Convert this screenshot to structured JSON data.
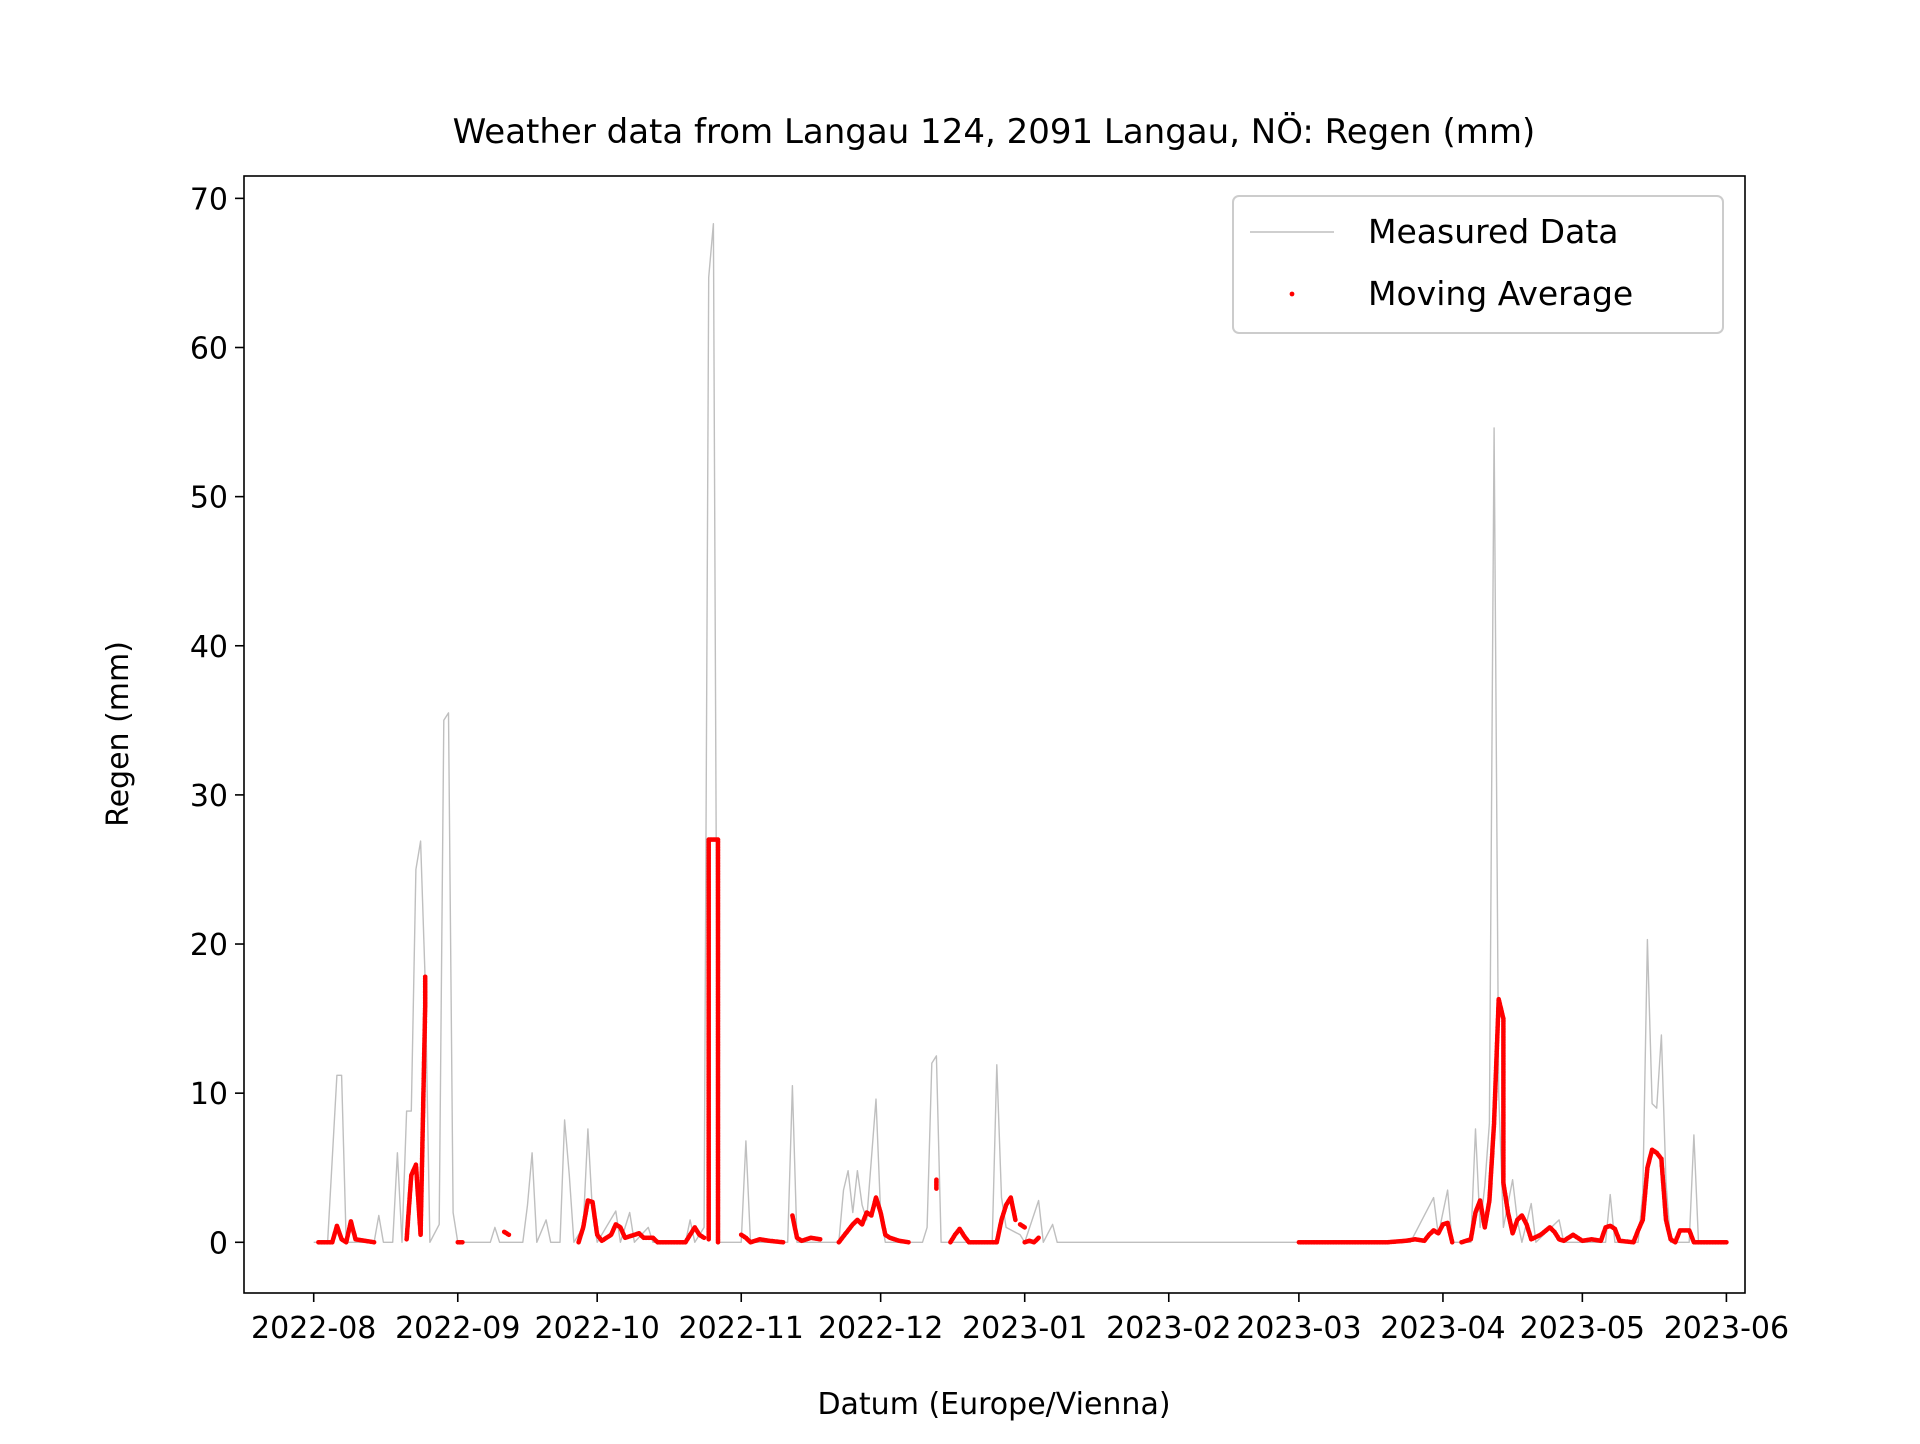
{
  "chart_data": {
    "type": "line",
    "title": "Weather data from Langau 124, 2091 Langau, NÖ: Regen (mm)",
    "xlabel": "Datum (Europe/Vienna)",
    "ylabel": "Regen (mm)",
    "x_range": [
      "2022-07-17",
      "2023-06-05"
    ],
    "ylim": [
      -3.4,
      71.5
    ],
    "x_ticks": [
      "2022-08",
      "2022-09",
      "2022-10",
      "2022-11",
      "2022-12",
      "2023-01",
      "2023-02",
      "2023-03",
      "2023-04",
      "2023-05",
      "2023-06"
    ],
    "y_ticks": [
      0,
      10,
      20,
      30,
      40,
      50,
      60,
      70
    ],
    "grid": false,
    "legend": {
      "position": "top-right"
    },
    "colors": {
      "measured": "#bfbfbf",
      "moving_average": "#ff0000"
    },
    "series": [
      {
        "name": "Measured Data",
        "style": "line",
        "points": [
          [
            "2022-08-01",
            0
          ],
          [
            "2022-08-04",
            0
          ],
          [
            "2022-08-06",
            11.2
          ],
          [
            "2022-08-07",
            11.2
          ],
          [
            "2022-08-08",
            0
          ],
          [
            "2022-08-14",
            0
          ],
          [
            "2022-08-15",
            1.8
          ],
          [
            "2022-08-16",
            0
          ],
          [
            "2022-08-18",
            0
          ],
          [
            "2022-08-19",
            6.0
          ],
          [
            "2022-08-20",
            0
          ],
          [
            "2022-08-21",
            8.8
          ],
          [
            "2022-08-22",
            8.8
          ],
          [
            "2022-08-23",
            25.0
          ],
          [
            "2022-08-24",
            26.9
          ],
          [
            "2022-08-25",
            17.5
          ],
          [
            "2022-08-26",
            0
          ],
          [
            "2022-08-28",
            1.2
          ],
          [
            "2022-08-29",
            35.0
          ],
          [
            "2022-08-30",
            35.5
          ],
          [
            "2022-08-31",
            2.0
          ],
          [
            "2022-09-01",
            0
          ],
          [
            "2022-09-08",
            0
          ],
          [
            "2022-09-09",
            1.0
          ],
          [
            "2022-09-10",
            0
          ],
          [
            "2022-09-15",
            0
          ],
          [
            "2022-09-16",
            2.5
          ],
          [
            "2022-09-17",
            6.0
          ],
          [
            "2022-09-18",
            0
          ],
          [
            "2022-09-20",
            1.5
          ],
          [
            "2022-09-21",
            0
          ],
          [
            "2022-09-23",
            0
          ],
          [
            "2022-09-24",
            8.2
          ],
          [
            "2022-09-25",
            4.5
          ],
          [
            "2022-09-26",
            0
          ],
          [
            "2022-09-28",
            1.0
          ],
          [
            "2022-09-29",
            7.6
          ],
          [
            "2022-09-30",
            2.0
          ],
          [
            "2022-10-01",
            0
          ],
          [
            "2022-10-05",
            2.1
          ],
          [
            "2022-10-06",
            0
          ],
          [
            "2022-10-08",
            2.0
          ],
          [
            "2022-10-09",
            0
          ],
          [
            "2022-10-12",
            1.0
          ],
          [
            "2022-10-13",
            0
          ],
          [
            "2022-10-20",
            0
          ],
          [
            "2022-10-21",
            1.5
          ],
          [
            "2022-10-22",
            0
          ],
          [
            "2022-10-24",
            1.0
          ],
          [
            "2022-10-25",
            64.7
          ],
          [
            "2022-10-26",
            68.3
          ],
          [
            "2022-10-27",
            0
          ],
          [
            "2022-11-01",
            0
          ],
          [
            "2022-11-02",
            6.8
          ],
          [
            "2022-11-03",
            0
          ],
          [
            "2022-11-11",
            0
          ],
          [
            "2022-11-12",
            10.5
          ],
          [
            "2022-11-13",
            0
          ],
          [
            "2022-11-22",
            0
          ],
          [
            "2022-11-23",
            3.5
          ],
          [
            "2022-11-24",
            4.8
          ],
          [
            "2022-11-25",
            2.0
          ],
          [
            "2022-11-26",
            4.8
          ],
          [
            "2022-11-27",
            2.5
          ],
          [
            "2022-11-28",
            1.5
          ],
          [
            "2022-11-30",
            9.6
          ],
          [
            "2022-12-01",
            2.0
          ],
          [
            "2022-12-02",
            0
          ],
          [
            "2022-12-10",
            0
          ],
          [
            "2022-12-11",
            1.0
          ],
          [
            "2022-12-12",
            12.0
          ],
          [
            "2022-12-13",
            12.5
          ],
          [
            "2022-12-14",
            0
          ],
          [
            "2022-12-25",
            0
          ],
          [
            "2022-12-26",
            11.9
          ],
          [
            "2022-12-27",
            3.0
          ],
          [
            "2022-12-28",
            1.0
          ],
          [
            "2022-12-31",
            0.5
          ],
          [
            "2023-01-01",
            0
          ],
          [
            "2023-01-04",
            2.8
          ],
          [
            "2023-01-05",
            0
          ],
          [
            "2023-01-07",
            1.2
          ],
          [
            "2023-01-08",
            0
          ],
          [
            "2023-03-01",
            0
          ],
          [
            "2023-03-25",
            0
          ],
          [
            "2023-03-30",
            3.0
          ],
          [
            "2023-03-31",
            0.5
          ],
          [
            "2023-04-02",
            3.5
          ],
          [
            "2023-04-03",
            0
          ],
          [
            "2023-04-07",
            0
          ],
          [
            "2023-04-08",
            7.6
          ],
          [
            "2023-04-09",
            1.0
          ],
          [
            "2023-04-10",
            3.8
          ],
          [
            "2023-04-11",
            8.0
          ],
          [
            "2023-04-12",
            54.6
          ],
          [
            "2023-04-13",
            10.0
          ],
          [
            "2023-04-14",
            1.0
          ],
          [
            "2023-04-16",
            4.2
          ],
          [
            "2023-04-17",
            1.5
          ],
          [
            "2023-04-18",
            0
          ],
          [
            "2023-04-20",
            2.6
          ],
          [
            "2023-04-21",
            0
          ],
          [
            "2023-04-26",
            1.5
          ],
          [
            "2023-04-27",
            0
          ],
          [
            "2023-05-06",
            0
          ],
          [
            "2023-05-07",
            3.2
          ],
          [
            "2023-05-08",
            0
          ],
          [
            "2023-05-13",
            0
          ],
          [
            "2023-05-14",
            3.3
          ],
          [
            "2023-05-15",
            20.3
          ],
          [
            "2023-05-16",
            9.3
          ],
          [
            "2023-05-17",
            9.0
          ],
          [
            "2023-05-18",
            13.9
          ],
          [
            "2023-05-19",
            4.0
          ],
          [
            "2023-05-20",
            0
          ],
          [
            "2023-05-24",
            0
          ],
          [
            "2023-05-25",
            7.2
          ],
          [
            "2023-05-26",
            0
          ],
          [
            "2023-06-01",
            0
          ]
        ]
      },
      {
        "name": "Moving Average",
        "style": "dots",
        "segments": [
          [
            [
              "2022-08-02",
              0
            ],
            [
              "2022-08-05",
              0
            ],
            [
              "2022-08-06",
              1.1
            ],
            [
              "2022-08-07",
              0.2
            ],
            [
              "2022-08-08",
              0
            ],
            [
              "2022-08-09",
              1.4
            ],
            [
              "2022-08-10",
              0.2
            ],
            [
              "2022-08-14",
              0
            ]
          ],
          [
            [
              "2022-08-21",
              0.2
            ],
            [
              "2022-08-22",
              4.5
            ],
            [
              "2022-08-23",
              5.2
            ],
            [
              "2022-08-24",
              0.5
            ],
            [
              "2022-08-25",
              16.0
            ],
            [
              "2022-08-25",
              17.8
            ]
          ],
          [
            [
              "2022-09-01",
              0
            ],
            [
              "2022-09-02",
              0
            ]
          ],
          [
            [
              "2022-09-11",
              0.7
            ],
            [
              "2022-09-12",
              0.5
            ]
          ],
          [
            [
              "2022-09-27",
              0
            ],
            [
              "2022-09-28",
              1.0
            ],
            [
              "2022-09-29",
              2.8
            ],
            [
              "2022-09-30",
              2.7
            ],
            [
              "2022-10-01",
              0.5
            ],
            [
              "2022-10-02",
              0.1
            ],
            [
              "2022-10-04",
              0.5
            ],
            [
              "2022-10-05",
              1.2
            ],
            [
              "2022-10-06",
              1.0
            ],
            [
              "2022-10-07",
              0.3
            ],
            [
              "2022-10-09",
              0.5
            ],
            [
              "2022-10-10",
              0.6
            ],
            [
              "2022-10-11",
              0.3
            ],
            [
              "2022-10-13",
              0.3
            ],
            [
              "2022-10-14",
              0
            ],
            [
              "2022-10-20",
              0
            ],
            [
              "2022-10-21",
              0.5
            ],
            [
              "2022-10-22",
              1.0
            ],
            [
              "2022-10-23",
              0.5
            ],
            [
              "2022-10-24",
              0.3
            ]
          ],
          [
            [
              "2022-10-25",
              0.2
            ],
            [
              "2022-10-25",
              27.0
            ],
            [
              "2022-10-27",
              27.0
            ],
            [
              "2022-10-27",
              0
            ]
          ],
          [
            [
              "2022-11-01",
              0.5
            ],
            [
              "2022-11-02",
              0.3
            ],
            [
              "2022-11-03",
              0
            ],
            [
              "2022-11-05",
              0.2
            ],
            [
              "2022-11-07",
              0.1
            ],
            [
              "2022-11-10",
              0
            ]
          ],
          [
            [
              "2022-11-12",
              1.8
            ],
            [
              "2022-11-13",
              0.3
            ],
            [
              "2022-11-14",
              0.1
            ],
            [
              "2022-11-16",
              0.3
            ],
            [
              "2022-11-18",
              0.2
            ]
          ],
          [
            [
              "2022-11-22",
              0
            ],
            [
              "2022-11-24",
              0.8
            ],
            [
              "2022-11-25",
              1.2
            ],
            [
              "2022-11-26",
              1.5
            ],
            [
              "2022-11-27",
              1.2
            ],
            [
              "2022-11-28",
              2.0
            ],
            [
              "2022-11-29",
              1.8
            ],
            [
              "2022-11-30",
              3.0
            ],
            [
              "2022-12-01",
              2.0
            ],
            [
              "2022-12-02",
              0.5
            ],
            [
              "2022-12-03",
              0.3
            ],
            [
              "2022-12-05",
              0.1
            ],
            [
              "2022-12-07",
              0
            ]
          ],
          [
            [
              "2022-12-13",
              4.2
            ],
            [
              "2022-12-13",
              3.6
            ]
          ],
          [
            [
              "2022-12-16",
              0
            ],
            [
              "2022-12-17",
              0.5
            ],
            [
              "2022-12-18",
              0.9
            ],
            [
              "2022-12-19",
              0.4
            ],
            [
              "2022-12-20",
              0
            ],
            [
              "2022-12-26",
              0
            ],
            [
              "2022-12-27",
              1.5
            ],
            [
              "2022-12-28",
              2.5
            ],
            [
              "2022-12-29",
              3.0
            ],
            [
              "2022-12-30",
              1.5
            ]
          ],
          [
            [
              "2022-12-31",
              1.2
            ],
            [
              "2023-01-01",
              1.0
            ]
          ],
          [
            [
              "2023-01-01",
              0
            ],
            [
              "2023-01-02",
              0.1
            ],
            [
              "2023-01-03",
              0
            ],
            [
              "2023-01-04",
              0.3
            ]
          ],
          [
            [
              "2023-03-01",
              0
            ],
            [
              "2023-03-20",
              0
            ],
            [
              "2023-03-24",
              0.1
            ],
            [
              "2023-03-26",
              0.2
            ],
            [
              "2023-03-28",
              0.1
            ],
            [
              "2023-03-29",
              0.5
            ],
            [
              "2023-03-30",
              0.8
            ],
            [
              "2023-03-31",
              0.6
            ],
            [
              "2023-04-01",
              1.2
            ],
            [
              "2023-04-02",
              1.3
            ],
            [
              "2023-04-03",
              0
            ]
          ],
          [
            [
              "2023-04-05",
              0
            ],
            [
              "2023-04-07",
              0.2
            ],
            [
              "2023-04-08",
              2.0
            ],
            [
              "2023-04-09",
              2.8
            ],
            [
              "2023-04-10",
              1.0
            ],
            [
              "2023-04-11",
              2.8
            ],
            [
              "2023-04-12",
              8.0
            ],
            [
              "2023-04-13",
              16.3
            ],
            [
              "2023-04-14",
              15.0
            ],
            [
              "2023-04-14",
              4.0
            ],
            [
              "2023-04-15",
              2.0
            ],
            [
              "2023-04-16",
              0.6
            ],
            [
              "2023-04-17",
              1.5
            ],
            [
              "2023-04-18",
              1.8
            ],
            [
              "2023-04-19",
              1.2
            ],
            [
              "2023-04-20",
              0.2
            ],
            [
              "2023-04-22",
              0.5
            ],
            [
              "2023-04-24",
              1.0
            ],
            [
              "2023-04-25",
              0.7
            ],
            [
              "2023-04-26",
              0.2
            ],
            [
              "2023-04-27",
              0.1
            ],
            [
              "2023-04-29",
              0.5
            ],
            [
              "2023-04-30",
              0.3
            ],
            [
              "2023-05-01",
              0.1
            ],
            [
              "2023-05-03",
              0.2
            ],
            [
              "2023-05-05",
              0.1
            ],
            [
              "2023-05-06",
              1.0
            ],
            [
              "2023-05-07",
              1.1
            ],
            [
              "2023-05-08",
              0.9
            ],
            [
              "2023-05-09",
              0.1
            ],
            [
              "2023-05-12",
              0
            ],
            [
              "2023-05-13",
              0.8
            ],
            [
              "2023-05-14",
              1.5
            ],
            [
              "2023-05-15",
              5.0
            ],
            [
              "2023-05-16",
              6.2
            ],
            [
              "2023-05-17",
              6.0
            ],
            [
              "2023-05-18",
              5.6
            ],
            [
              "2023-05-19",
              1.5
            ],
            [
              "2023-05-20",
              0.2
            ],
            [
              "2023-05-21",
              0
            ],
            [
              "2023-05-22",
              0.8
            ],
            [
              "2023-05-24",
              0.8
            ],
            [
              "2023-05-25",
              0
            ],
            [
              "2023-06-01",
              0
            ]
          ]
        ]
      }
    ]
  }
}
